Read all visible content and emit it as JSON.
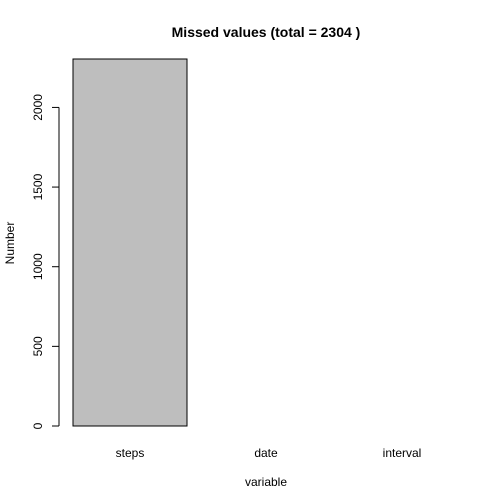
{
  "chart_data": {
    "type": "bar",
    "title": "Missed values (total =  2304 )",
    "xlabel": "variable",
    "ylabel": "Number",
    "categories": [
      "steps",
      "date",
      "interval"
    ],
    "values": [
      2304,
      0,
      0
    ],
    "ylim": [
      0,
      2304
    ],
    "yticks": [
      0,
      500,
      1000,
      1500,
      2000
    ],
    "bar_fill": "#bebebe",
    "bar_stroke": "#000000",
    "grid": false,
    "legend": "none"
  }
}
